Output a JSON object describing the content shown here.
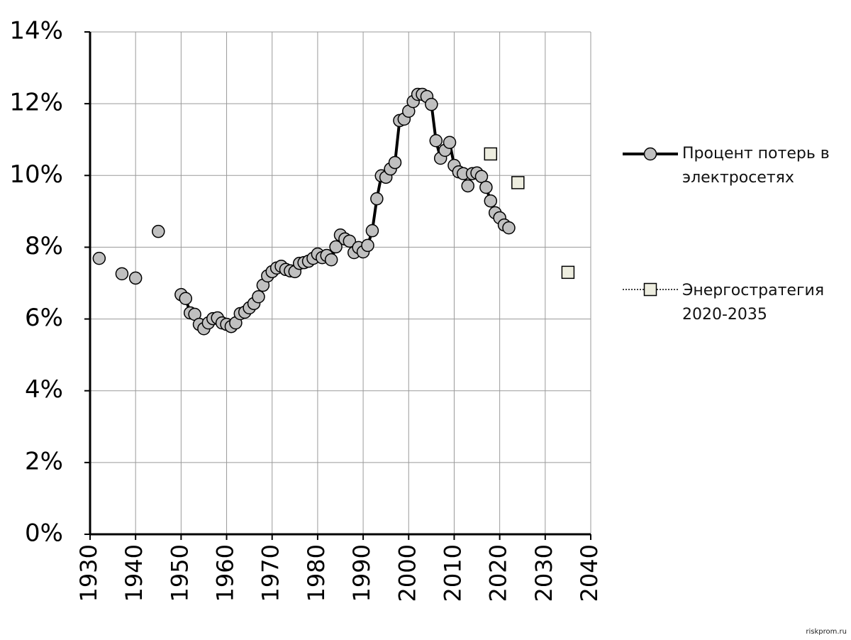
{
  "chart_data": {
    "type": "line",
    "x": [
      1932,
      1937,
      1940,
      1945,
      1950,
      1951,
      1952,
      1953,
      1954,
      1955,
      1956,
      1957,
      1958,
      1959,
      1960,
      1961,
      1962,
      1963,
      1964,
      1965,
      1966,
      1967,
      1968,
      1969,
      1970,
      1971,
      1972,
      1973,
      1974,
      1975,
      1976,
      1977,
      1978,
      1979,
      1980,
      1981,
      1982,
      1983,
      1984,
      1985,
      1986,
      1987,
      1988,
      1989,
      1990,
      1991,
      1992,
      1993,
      1994,
      1995,
      1996,
      1997,
      1998,
      1999,
      2000,
      2001,
      2002,
      2003,
      2004,
      2005,
      2006,
      2007,
      2008,
      2009,
      2010,
      2011,
      2012,
      2013,
      2014,
      2015,
      2016,
      2017,
      2018,
      2019,
      2020,
      2021,
      2022
    ],
    "series": [
      {
        "name": "Процент потерь в электросетях",
        "color": "#c0c0c0",
        "values": [
          7.69,
          7.26,
          7.14,
          8.44,
          6.68,
          6.57,
          6.17,
          6.13,
          5.85,
          5.73,
          5.89,
          6.01,
          6.03,
          5.89,
          5.85,
          5.79,
          5.89,
          6.15,
          6.19,
          6.31,
          6.43,
          6.62,
          6.94,
          7.2,
          7.32,
          7.42,
          7.47,
          7.38,
          7.34,
          7.32,
          7.55,
          7.57,
          7.61,
          7.69,
          7.81,
          7.71,
          7.77,
          7.65,
          8.01,
          8.34,
          8.23,
          8.17,
          7.85,
          7.99,
          7.87,
          8.05,
          8.46,
          9.35,
          9.99,
          9.95,
          10.18,
          10.36,
          11.53,
          11.57,
          11.79,
          12.06,
          12.26,
          12.26,
          12.2,
          11.98,
          10.97,
          10.48,
          10.7,
          10.92,
          10.28,
          10.1,
          10.05,
          9.71,
          10.05,
          10.07,
          9.97,
          9.67,
          9.29,
          8.96,
          8.82,
          8.62,
          8.54
        ]
      },
      {
        "name": "Энергостратегия 2020-2035",
        "color": "#ededdf",
        "x": [
          2018,
          2024,
          2035
        ],
        "values": [
          10.6,
          9.8,
          7.3
        ]
      }
    ],
    "xlim": [
      1930,
      2040
    ],
    "xticks": [
      1930,
      1940,
      1950,
      1960,
      1970,
      1980,
      1990,
      2000,
      2010,
      2020,
      2030,
      2040
    ],
    "ylim": [
      0,
      14
    ],
    "yticks": [
      {
        "value": 0,
        "label": "0%"
      },
      {
        "value": 2,
        "label": "2%"
      },
      {
        "value": 4,
        "label": "4%"
      },
      {
        "value": 6,
        "label": "6%"
      },
      {
        "value": 8,
        "label": "8%"
      },
      {
        "value": 10,
        "label": "10%"
      },
      {
        "value": 12,
        "label": "12%"
      },
      {
        "value": 14,
        "label": "14%"
      }
    ],
    "grid": true,
    "watermark": "riskprom.ru"
  }
}
